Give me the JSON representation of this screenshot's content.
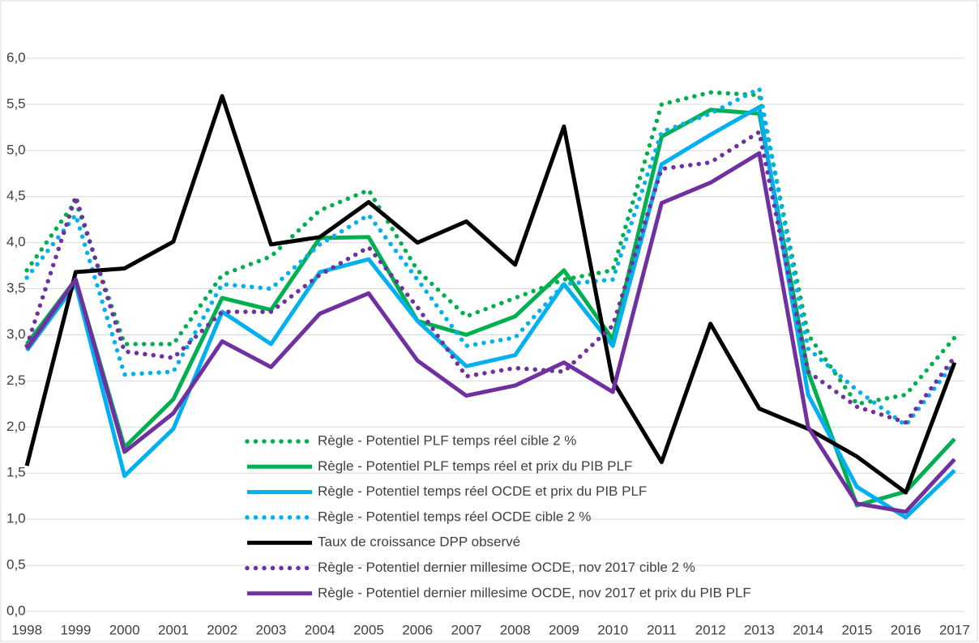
{
  "chart_data": {
    "type": "line",
    "categories": [
      "1998",
      "1999",
      "2000",
      "2001",
      "2002",
      "2003",
      "2004",
      "2005",
      "2006",
      "2007",
      "2008",
      "2009",
      "2010",
      "2011",
      "2012",
      "2013",
      "2014",
      "2015",
      "2016",
      "2017"
    ],
    "series": [
      {
        "name": "Règle - Potentiel PLF temps réel cible 2 %",
        "color": "#00b050",
        "style": "dotted",
        "values": [
          3.7,
          4.45,
          2.9,
          2.9,
          3.65,
          3.85,
          4.35,
          4.57,
          3.7,
          3.2,
          3.4,
          3.6,
          3.7,
          5.5,
          5.63,
          5.6,
          3.0,
          2.25,
          2.35,
          2.97
        ]
      },
      {
        "name": "Règle - Potentiel PLF temps réel et prix du PIB PLF",
        "color": "#00b050",
        "style": "solid",
        "values": [
          2.9,
          3.6,
          1.78,
          2.3,
          3.4,
          3.27,
          4.05,
          4.06,
          3.15,
          3.0,
          3.2,
          3.7,
          2.95,
          5.15,
          5.44,
          5.4,
          2.6,
          1.15,
          1.3,
          1.87
        ]
      },
      {
        "name": "Règle - Potentiel temps réel OCDE et prix du PIB PLF",
        "color": "#00b0f0",
        "style": "solid",
        "values": [
          2.83,
          3.55,
          1.47,
          1.98,
          3.25,
          2.9,
          3.68,
          3.82,
          3.15,
          2.66,
          2.78,
          3.55,
          2.88,
          4.85,
          5.17,
          5.47,
          2.35,
          1.35,
          1.02,
          1.53
        ]
      },
      {
        "name": "Règle - Potentiel temps réel OCDE cible 2 %",
        "color": "#00b0f0",
        "style": "dotted",
        "values": [
          3.62,
          4.3,
          2.57,
          2.6,
          3.55,
          3.5,
          3.98,
          4.3,
          3.6,
          2.88,
          2.97,
          3.55,
          3.6,
          5.2,
          5.4,
          5.67,
          2.85,
          2.4,
          2.02,
          2.7
        ]
      },
      {
        "name": "Taux de croissance DPP observé",
        "color": "#000000",
        "style": "solid",
        "values": [
          1.58,
          3.68,
          3.72,
          4.01,
          5.59,
          3.98,
          4.06,
          4.44,
          4.0,
          4.23,
          3.76,
          5.26,
          2.5,
          1.62,
          3.12,
          2.2,
          1.98,
          1.68,
          1.29,
          2.7
        ]
      },
      {
        "name": "Règle - Potentiel dernier millesime OCDE, nov 2017 cible 2 %",
        "color": "#7030a0",
        "style": "dotted",
        "values": [
          2.88,
          4.5,
          2.82,
          2.75,
          3.25,
          3.25,
          3.65,
          3.95,
          3.3,
          2.55,
          2.64,
          2.6,
          3.1,
          4.8,
          4.87,
          5.2,
          2.6,
          2.22,
          2.05,
          2.76
        ]
      },
      {
        "name": "Règle - Potentiel dernier millesime OCDE, nov 2017 et prix du PIB PLF",
        "color": "#7030a0",
        "style": "solid",
        "values": [
          2.85,
          3.6,
          1.73,
          2.15,
          2.93,
          2.65,
          3.23,
          3.45,
          2.72,
          2.34,
          2.45,
          2.7,
          2.38,
          4.43,
          4.65,
          4.97,
          2.0,
          1.17,
          1.08,
          1.65
        ]
      }
    ],
    "ylim": [
      0,
      6.5
    ],
    "yticks": [
      {
        "value": 0,
        "label": "0,0"
      },
      {
        "value": 0.5,
        "label": "0,5"
      },
      {
        "value": 1,
        "label": "1,0"
      },
      {
        "value": 1.5,
        "label": "1,5"
      },
      {
        "value": 2,
        "label": "2,0"
      },
      {
        "value": 2.5,
        "label": "2,5"
      },
      {
        "value": 3,
        "label": "3,0"
      },
      {
        "value": 3.5,
        "label": "3,5"
      },
      {
        "value": 4,
        "label": "4,0"
      },
      {
        "value": 4.5,
        "label": "4,5"
      },
      {
        "value": 5,
        "label": "5,0"
      },
      {
        "value": 5.5,
        "label": "5,5"
      },
      {
        "value": 6,
        "label": "6,0"
      }
    ],
    "grid": true,
    "legend": "bottom"
  }
}
